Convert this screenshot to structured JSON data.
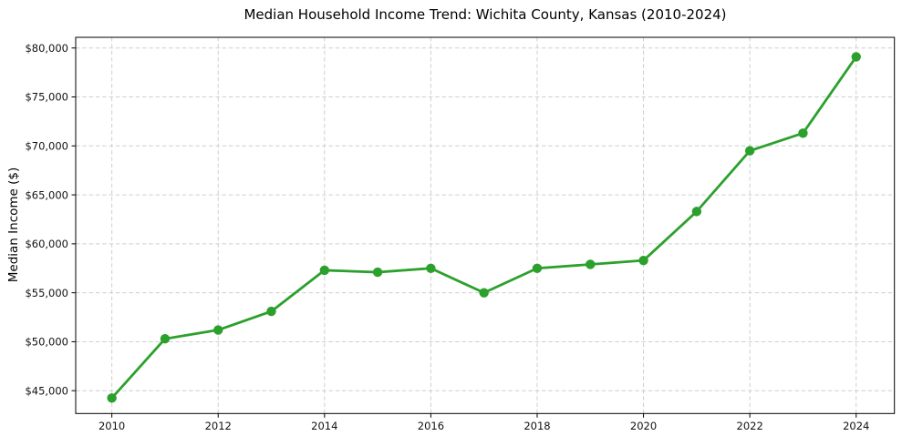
{
  "chart_data": {
    "type": "line",
    "title": "Median Household Income Trend: Wichita County, Kansas (2010-2024)",
    "xlabel": "",
    "ylabel": "Median Income ($)",
    "x": [
      2010,
      2011,
      2012,
      2013,
      2014,
      2015,
      2016,
      2017,
      2018,
      2019,
      2020,
      2021,
      2022,
      2023,
      2024
    ],
    "values": [
      44250,
      50300,
      51200,
      53100,
      57300,
      57100,
      57500,
      55000,
      57500,
      57900,
      58300,
      63300,
      69500,
      71300,
      79100
    ],
    "x_ticks": [
      2010,
      2012,
      2014,
      2016,
      2018,
      2020,
      2022,
      2024
    ],
    "x_tick_labels": [
      "2010",
      "2012",
      "2014",
      "2016",
      "2018",
      "2020",
      "2022",
      "2024"
    ],
    "y_ticks": [
      45000,
      50000,
      55000,
      60000,
      65000,
      70000,
      75000,
      80000
    ],
    "y_tick_labels": [
      "$45,000",
      "$50,000",
      "$55,000",
      "$60,000",
      "$65,000",
      "$70,000",
      "$75,000",
      "$80,000"
    ],
    "xlim": [
      2009.32,
      2024.72
    ],
    "ylim": [
      42670,
      81090
    ],
    "grid": "dashed",
    "legend": "none",
    "colors": {
      "line": "#2ca02c",
      "marker": "#2ca02c",
      "grid": "#cfcfcf",
      "spine": "#000000",
      "tick_text": "#111111",
      "background": "#ffffff"
    }
  }
}
